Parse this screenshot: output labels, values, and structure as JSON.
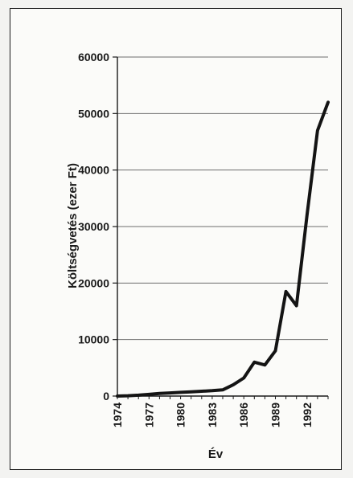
{
  "chart_data": {
    "type": "line",
    "title": "",
    "xlabel": "Év",
    "ylabel": "Költségvetés (ezer Ft)",
    "xlim": [
      1974,
      1994
    ],
    "ylim": [
      0,
      60000
    ],
    "grid": true,
    "x_ticks": [
      "1974",
      "1977",
      "1980",
      "1983",
      "1986",
      "1989",
      "1992"
    ],
    "y_ticks": [
      "0",
      "10000",
      "20000",
      "30000",
      "40000",
      "50000",
      "60000"
    ],
    "series": [
      {
        "x": [
          1974,
          1975,
          1976,
          1977,
          1978,
          1979,
          1980,
          1981,
          1982,
          1983,
          1984,
          1985,
          1986,
          1987,
          1988,
          1989,
          1990,
          1991,
          1992,
          1993,
          1994
        ],
        "y": [
          0,
          50,
          150,
          300,
          450,
          550,
          650,
          750,
          850,
          950,
          1100,
          2000,
          3200,
          6000,
          5500,
          8000,
          18500,
          16000,
          32000,
          47000,
          52000
        ]
      }
    ]
  }
}
